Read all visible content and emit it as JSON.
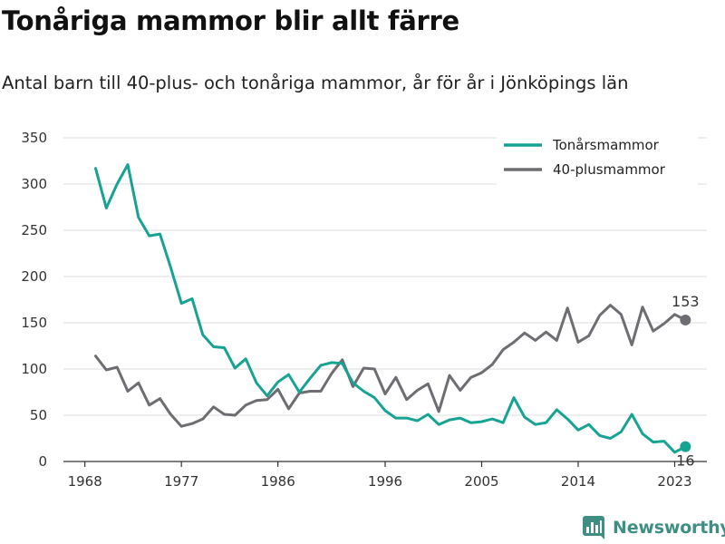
{
  "title": "Tonåriga mammor blir allt färre",
  "subtitle": "Antal barn till 40-plus- och tonåriga mammor, år för år i Jönköpings län",
  "brand": "Newsworthy",
  "colors": {
    "teen": "#16a393",
    "plus40": "#6d6d72",
    "grid": "#dddddd",
    "brand": "#3f8e84"
  },
  "chart_data": {
    "type": "line",
    "title": "Tonåriga mammor blir allt färre",
    "subtitle": "Antal barn till 40-plus- och tonåriga mammor, år för år i Jönköpings län",
    "xlabel": "",
    "ylabel": "",
    "xlim": [
      1966,
      2026
    ],
    "ylim": [
      0,
      350
    ],
    "y_ticks": [
      "0",
      "50",
      "100",
      "150",
      "200",
      "250",
      "300",
      "350"
    ],
    "x_ticks": [
      "1968",
      "1977",
      "1986",
      "1996",
      "2005",
      "2014",
      "2023"
    ],
    "grid": "horizontal",
    "legend_position": "top-right",
    "x": [
      1969,
      1970,
      1971,
      1972,
      1973,
      1974,
      1975,
      1976,
      1977,
      1978,
      1979,
      1980,
      1981,
      1982,
      1983,
      1984,
      1985,
      1986,
      1987,
      1988,
      1989,
      1990,
      1991,
      1992,
      1993,
      1994,
      1995,
      1996,
      1997,
      1998,
      1999,
      2000,
      2001,
      2002,
      2003,
      2004,
      2005,
      2006,
      2007,
      2008,
      2009,
      2010,
      2011,
      2012,
      2013,
      2014,
      2015,
      2016,
      2017,
      2018,
      2019,
      2020,
      2021,
      2022,
      2023,
      2024
    ],
    "series": [
      {
        "name": "Tonårsmammor",
        "values": [
          317,
          274,
          300,
          321,
          264,
          244,
          246,
          210,
          171,
          176,
          137,
          124,
          123,
          101,
          111,
          85,
          71,
          86,
          94,
          75,
          90,
          104,
          107,
          106,
          85,
          76,
          69,
          55,
          47,
          47,
          44,
          51,
          40,
          45,
          47,
          42,
          43,
          46,
          42,
          69,
          48,
          40,
          42,
          56,
          46,
          34,
          40,
          28,
          25,
          32,
          51,
          30,
          21,
          22,
          10,
          16
        ]
      },
      {
        "name": "40-plusmammor",
        "values": [
          114,
          99,
          102,
          76,
          85,
          61,
          68,
          51,
          38,
          41,
          46,
          59,
          51,
          50,
          61,
          66,
          67,
          78,
          57,
          74,
          76,
          76,
          95,
          110,
          81,
          101,
          100,
          73,
          91,
          67,
          77,
          84,
          54,
          93,
          77,
          91,
          96,
          105,
          121,
          129,
          139,
          131,
          140,
          131,
          166,
          129,
          136,
          158,
          169,
          159,
          126,
          167,
          141,
          149,
          159,
          153
        ]
      }
    ],
    "end_labels": [
      "16",
      "153"
    ]
  }
}
